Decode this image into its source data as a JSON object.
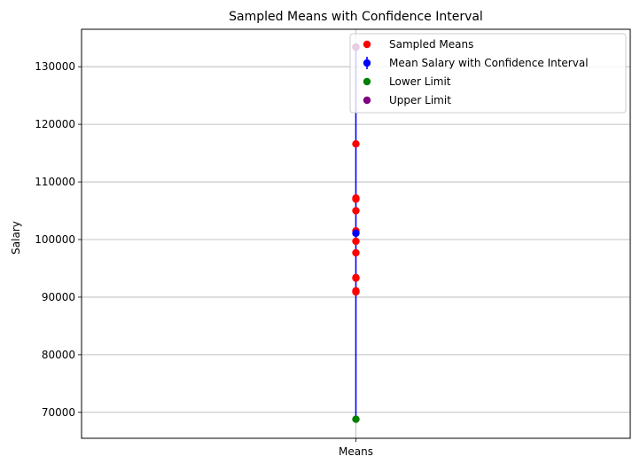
{
  "chart_data": {
    "type": "scatter",
    "title": "Sampled Means with Confidence Interval",
    "xlabel": "",
    "ylabel": "Salary",
    "categories": [
      "Means"
    ],
    "ylim": [
      65500,
      136500
    ],
    "yticks": [
      70000,
      80000,
      90000,
      100000,
      110000,
      120000,
      130000
    ],
    "grid": true,
    "legend_position": "top-right",
    "series": [
      {
        "name": "Sampled Means",
        "kind": "scatter",
        "color": "#ff0000",
        "x": [
          "Means",
          "Means",
          "Means",
          "Means",
          "Means",
          "Means",
          "Means",
          "Means",
          "Means",
          "Means",
          "Means",
          "Means"
        ],
        "values": [
          133400,
          116600,
          107200,
          107000,
          105000,
          101500,
          99700,
          97700,
          93400,
          93300,
          91100,
          90900
        ]
      },
      {
        "name": "Mean Salary with Confidence Interval",
        "kind": "errorbar",
        "color": "#0000ff",
        "x": [
          "Means"
        ],
        "values": [
          101100
        ],
        "lower": [
          68800
        ],
        "upper": [
          133400
        ]
      },
      {
        "name": "Lower Limit",
        "kind": "scatter",
        "color": "#008000",
        "x": [
          "Means"
        ],
        "values": [
          68800
        ]
      },
      {
        "name": "Upper Limit",
        "kind": "scatter",
        "color": "#800080",
        "x": [
          "Means"
        ],
        "values": [
          133400
        ]
      }
    ]
  }
}
